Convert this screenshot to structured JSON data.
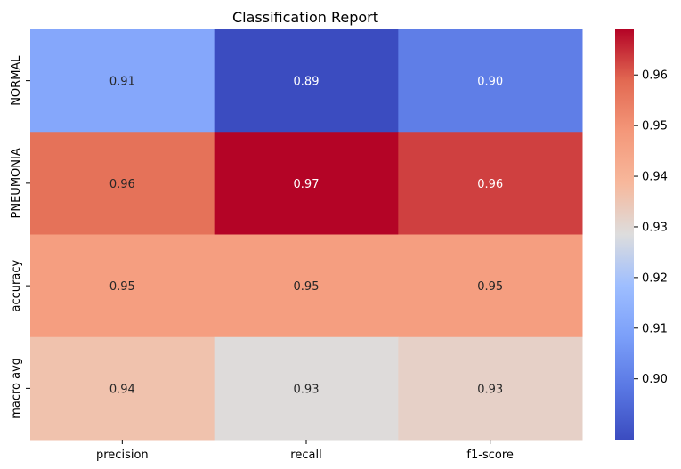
{
  "chart_data": {
    "type": "heatmap",
    "title": "Classification Report",
    "xlabel": "",
    "ylabel": "",
    "columns": [
      "precision",
      "recall",
      "f1-score"
    ],
    "rows": [
      "NORMAL",
      "PNEUMONIA",
      "accuracy",
      "macro avg"
    ],
    "values": [
      [
        0.911,
        0.888,
        0.9
      ],
      [
        0.957,
        0.969,
        0.963
      ],
      [
        0.947,
        0.947,
        0.947
      ],
      [
        0.936,
        0.929,
        0.932
      ]
    ],
    "annotations": [
      [
        "0.91",
        "0.89",
        "0.90"
      ],
      [
        "0.96",
        "0.97",
        "0.96"
      ],
      [
        "0.95",
        "0.95",
        "0.95"
      ],
      [
        "0.94",
        "0.93",
        "0.93"
      ]
    ],
    "colormap": "coolwarm",
    "vmin": 0.888,
    "vmax": 0.969,
    "colorbar_ticks": [
      "0.90",
      "0.91",
      "0.92",
      "0.93",
      "0.94",
      "0.95",
      "0.96"
    ],
    "colorbar_tick_values": [
      0.9,
      0.91,
      0.92,
      0.93,
      0.94,
      0.95,
      0.96
    ],
    "grid": false,
    "legend": "colorbar-right"
  }
}
